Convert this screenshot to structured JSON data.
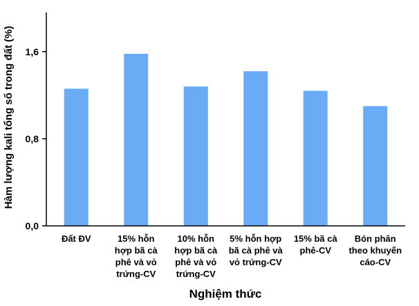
{
  "chart_data": {
    "type": "bar",
    "categories": [
      [
        "Đất ĐV"
      ],
      [
        "15% hỗn",
        "hợp bã cà",
        "phê và vỏ",
        "trứng-CV"
      ],
      [
        "10% hỗn",
        "hợp bã cà",
        "phê và vỏ",
        "trứng-CV"
      ],
      [
        "5% hỗn hợp",
        "bã cà phê và",
        "vỏ trứng-CV"
      ],
      [
        "15% bã cà",
        "phê-CV"
      ],
      [
        "Bón phân",
        "theo khuyến",
        "cáo-CV"
      ]
    ],
    "values": [
      1.26,
      1.58,
      1.28,
      1.42,
      1.24,
      1.1
    ],
    "ylim": [
      0,
      1.96
    ],
    "yticks": [
      0,
      0.8,
      1.6
    ],
    "ytick_labels": [
      "0,0",
      "0,8",
      "1,6"
    ],
    "xlabel": "Nghiệm thức",
    "ylabel": "Hàm lượng kali tổng số trong đất (%)",
    "bar_color": "#6aabf5",
    "grid": false
  }
}
